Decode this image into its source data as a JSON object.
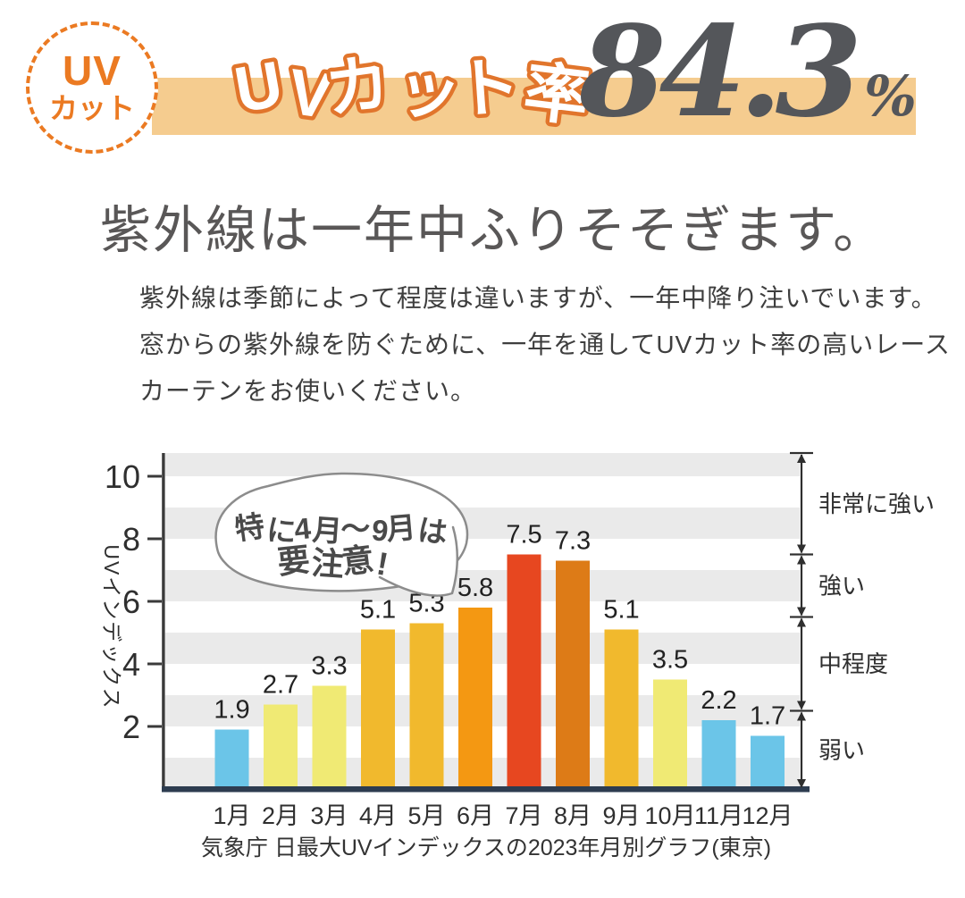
{
  "header": {
    "badge": {
      "line1": "UV",
      "line2": "カット"
    },
    "band_label": "UVカット率",
    "value": "84.3",
    "unit": "%"
  },
  "heading": "紫外線は一年中ふりそそぎます。",
  "body_lines": [
    "紫外線は季節によって程度は違いますが、一年中降り注いでいます。",
    "窓からの紫外線を防ぐために、一年を通してUVカット率の高いレース",
    "カーテンをお使いください。"
  ],
  "chart_data": {
    "type": "bar",
    "title": "",
    "ylabel": "UVインデックス",
    "xlabel": "",
    "categories": [
      "1月",
      "2月",
      "3月",
      "4月",
      "5月",
      "6月",
      "7月",
      "8月",
      "9月",
      "10月",
      "11月",
      "12月"
    ],
    "values": [
      1.9,
      2.7,
      3.3,
      5.1,
      5.3,
      5.8,
      7.5,
      7.3,
      5.1,
      3.5,
      2.2,
      1.7
    ],
    "bar_colors": [
      "blue",
      "paleYellow",
      "paleYellow",
      "gold",
      "gold",
      "orange",
      "red",
      "darkOrange",
      "gold",
      "paleYellow",
      "blue",
      "blue"
    ],
    "palette": {
      "blue": "#6BC5E8",
      "paleYellow": "#F0EA74",
      "gold": "#F1B92D",
      "orange": "#F49812",
      "red": "#E74720",
      "darkOrange": "#DD7B17"
    },
    "yticks": [
      2,
      4,
      6,
      8,
      10
    ],
    "ylim": [
      0,
      10.7
    ],
    "grid": "striped-horizontal-bands",
    "legend": "none",
    "annotation": {
      "lines": [
        "特に4月〜9月は",
        "要注意!"
      ]
    },
    "levels": [
      {
        "label": "非常に強い",
        "min": 7.5,
        "max": 10.7
      },
      {
        "label": "強い",
        "min": 5.5,
        "max": 7.5
      },
      {
        "label": "中程度",
        "min": 2.5,
        "max": 5.5
      },
      {
        "label": "弱い",
        "min": 0,
        "max": 2.5
      }
    ],
    "source_caption": "気象庁 日最大UVインデックスの2023年月別グラフ(東京)"
  },
  "colors": {
    "accent_orange": "#EB7A22",
    "wordmark_stroke": "#E1752C",
    "band_bg": "#F5CC8F",
    "number_gray": "#54565A",
    "heading_gray": "#595757",
    "body_gray": "#3E3E3E",
    "stripe_gray": "#EAEAEA",
    "axis_dark": "#3A3A3A",
    "baseline_navy": "#2D3C50",
    "chart_text": "#2F2F2F",
    "value_label": "#222222",
    "bubble_stroke": "#8C8C8C",
    "bubble_text": "#4A4A4A"
  }
}
